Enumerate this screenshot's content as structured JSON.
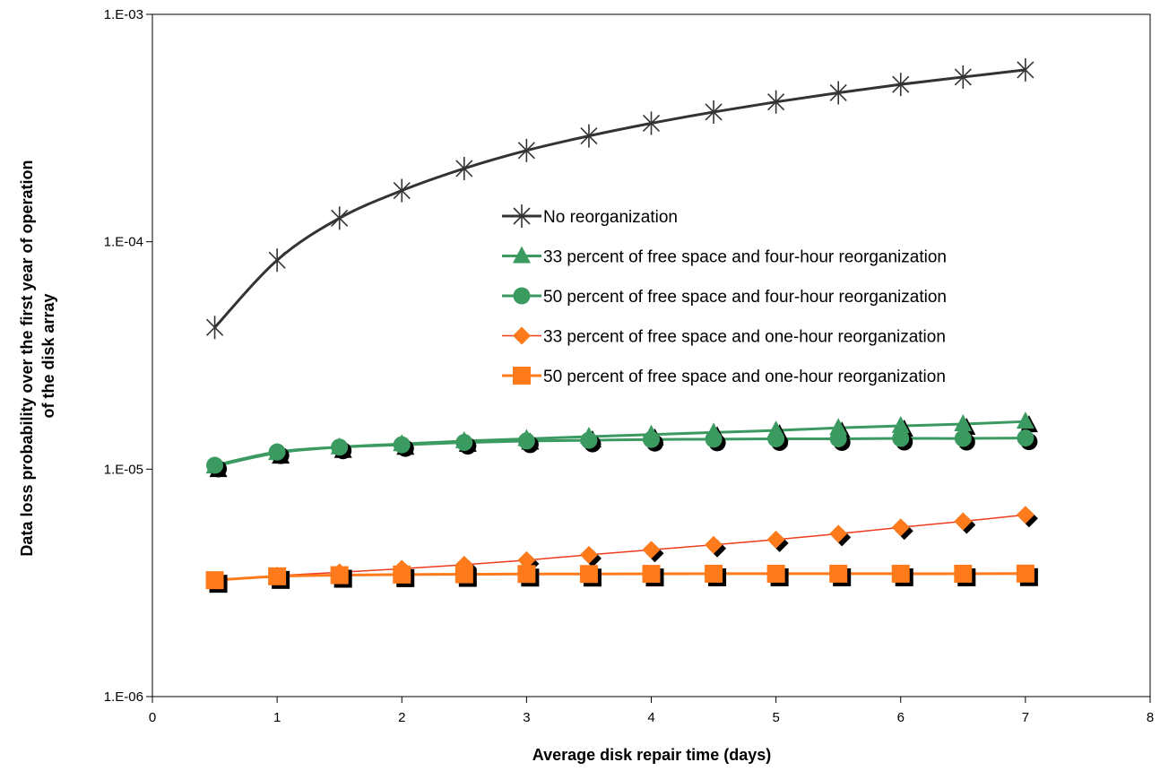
{
  "chart_data": {
    "type": "line",
    "title": "",
    "xlabel": "Average disk repair time (days)",
    "ylabel": [
      "Data loss probability over the  first year of operation",
      "of the disk array"
    ],
    "xlim": [
      0,
      8
    ],
    "ylim": [
      1e-06,
      0.001
    ],
    "yscale": "log",
    "x_ticks": [
      "0",
      "1",
      "2",
      "3",
      "4",
      "5",
      "6",
      "7",
      "8"
    ],
    "y_ticks": [
      "1.E-06",
      "1.E-05",
      "1.E-04",
      "1.E-03"
    ],
    "grid": false,
    "legend_position": "center",
    "x": [
      0.5,
      1,
      1.5,
      2,
      2.5,
      3,
      3.5,
      4,
      4.5,
      5,
      5.5,
      6,
      6.5,
      7
    ],
    "series": [
      {
        "name": "No reorganization",
        "marker": "asterisk",
        "color": "#333333",
        "values": [
          4.2e-05,
          8.3e-05,
          0.000127,
          0.000168,
          0.00021,
          0.000252,
          0.000292,
          0.000332,
          0.000372,
          0.000412,
          0.000452,
          0.000492,
          0.00053,
          0.00057
        ]
      },
      {
        "name": "33 percent of free space and four-hour reorganization",
        "marker": "triangle",
        "color": "#3a9a60",
        "values": [
          1.03e-05,
          1.18e-05,
          1.25e-05,
          1.29e-05,
          1.33e-05,
          1.36e-05,
          1.39e-05,
          1.42e-05,
          1.45e-05,
          1.48e-05,
          1.52e-05,
          1.55e-05,
          1.58e-05,
          1.62e-05
        ]
      },
      {
        "name": "50 percent of free space and four-hour reorganization",
        "marker": "circle",
        "color": "#3a9a60",
        "values": [
          1.04e-05,
          1.19e-05,
          1.25e-05,
          1.28e-05,
          1.31e-05,
          1.33e-05,
          1.34e-05,
          1.35e-05,
          1.355e-05,
          1.36e-05,
          1.36e-05,
          1.365e-05,
          1.365e-05,
          1.37e-05
        ]
      },
      {
        "name": "33 percent of free space and one-hour reorganization",
        "marker": "diamond",
        "color": "#ee3b1c",
        "markerColor": "#ff7a1a",
        "values": [
          3.25e-06,
          3.4e-06,
          3.52e-06,
          3.65e-06,
          3.8e-06,
          3.98e-06,
          4.2e-06,
          4.42e-06,
          4.65e-06,
          4.9e-06,
          5.2e-06,
          5.55e-06,
          5.9e-06,
          6.3e-06
        ]
      },
      {
        "name": "50 percent of free space and one-hour reorganization",
        "marker": "square",
        "color": "#ff7a1a",
        "values": [
          3.25e-06,
          3.38e-06,
          3.42e-06,
          3.44e-06,
          3.45e-06,
          3.46e-06,
          3.46e-06,
          3.465e-06,
          3.47e-06,
          3.47e-06,
          3.47e-06,
          3.47e-06,
          3.47e-06,
          3.475e-06
        ]
      }
    ]
  }
}
